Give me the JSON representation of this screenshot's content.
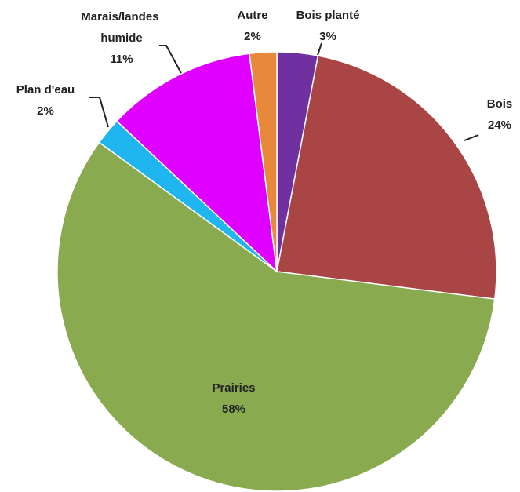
{
  "chart_data": {
    "type": "pie",
    "categories": [
      "Bois planté",
      "Bois",
      "Prairies",
      "Plan d'eau",
      "Marais/landes humide",
      "Autre"
    ],
    "values": [
      3,
      24,
      58,
      2,
      11,
      2
    ],
    "value_labels": [
      "3%",
      "24%",
      "58%",
      "2%",
      "11%",
      "2%"
    ],
    "colors": [
      "#7030a0",
      "#a94545",
      "#8aaa50",
      "#1fb5ef",
      "#e000ff",
      "#e8883a"
    ]
  }
}
